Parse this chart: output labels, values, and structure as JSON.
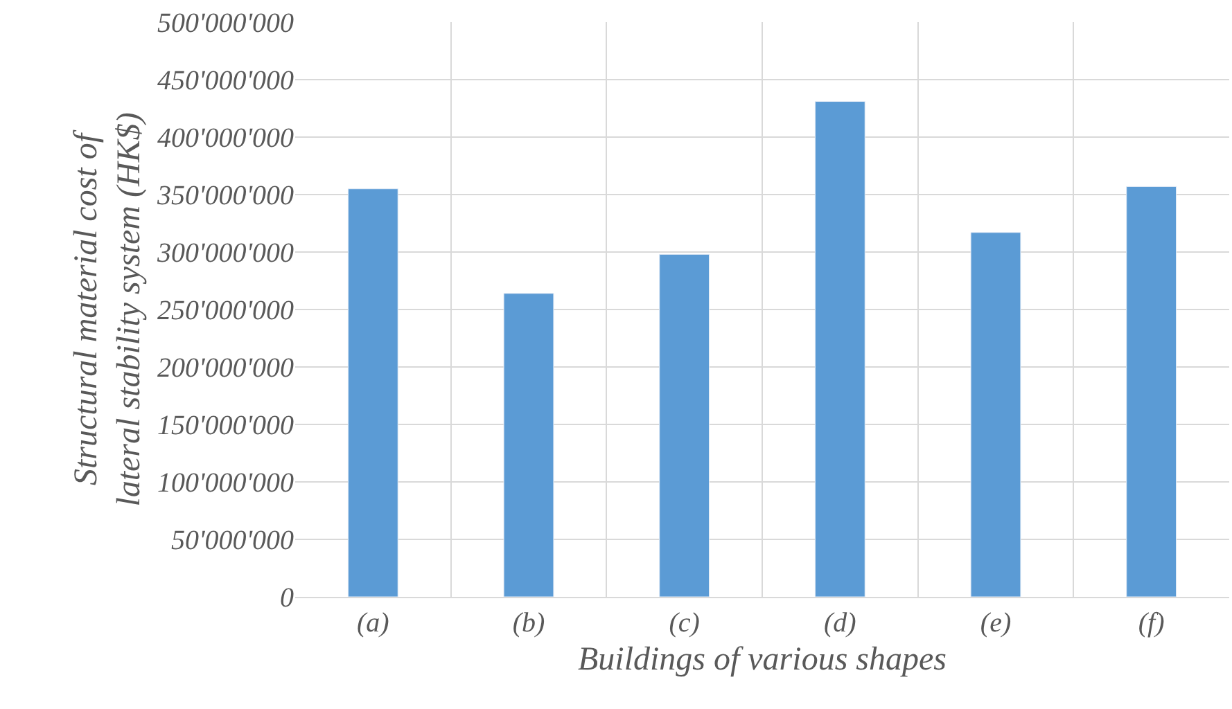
{
  "chart_data": {
    "type": "bar",
    "xlabel": "Buildings of various shapes",
    "ylabel": "Structural material cost of lateral stability system (HK$)",
    "categories": [
      "(a)",
      "(b)",
      "(c)",
      "(d)",
      "(e)",
      "(f)"
    ],
    "values": [
      355000000,
      264000000,
      298000000,
      431000000,
      317000000,
      357000000
    ],
    "color": "#5b9bd5",
    "ylim": [
      0,
      500000000
    ],
    "yticks": [
      {
        "value": 0,
        "label": "0"
      },
      {
        "value": 50000000,
        "label": "50'000'000"
      },
      {
        "value": 100000000,
        "label": "100'000'000"
      },
      {
        "value": 150000000,
        "label": "150'000'000"
      },
      {
        "value": 200000000,
        "label": "200'000'000"
      },
      {
        "value": 250000000,
        "label": "250'000'000"
      },
      {
        "value": 300000000,
        "label": "300'000'000"
      },
      {
        "value": 350000000,
        "label": "350'000'000"
      },
      {
        "value": 400000000,
        "label": "400'000'000"
      },
      {
        "value": 450000000,
        "label": "450'000'000"
      },
      {
        "value": 500000000,
        "label": "500'000'000"
      }
    ],
    "grid": true
  }
}
